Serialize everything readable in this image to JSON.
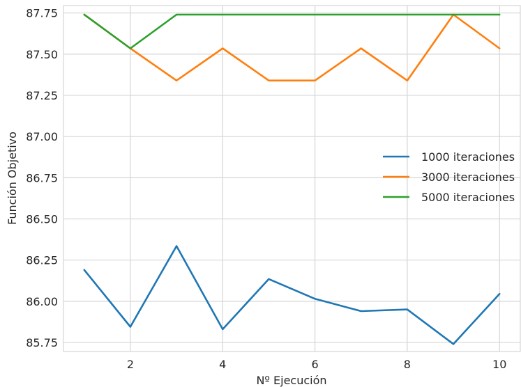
{
  "chart_data": {
    "type": "line",
    "title": "",
    "xlabel": "Nº Ejecución",
    "ylabel": "Función Objetivo",
    "x": [
      1,
      2,
      3,
      4,
      5,
      6,
      7,
      8,
      9,
      10
    ],
    "xlim": [
      0.55,
      10.45
    ],
    "ylim": [
      85.695,
      87.795
    ],
    "xticks": [
      2,
      4,
      6,
      8,
      10
    ],
    "xtick_labels": [
      "2",
      "4",
      "6",
      "8",
      "10"
    ],
    "yticks": [
      85.75,
      86.0,
      86.25,
      86.5,
      86.75,
      87.0,
      87.25,
      87.5,
      87.75
    ],
    "ytick_labels": [
      "85.75",
      "86.00",
      "86.25",
      "86.50",
      "86.75",
      "87.00",
      "87.25",
      "87.50",
      "87.75"
    ],
    "grid": true,
    "legend_position": "center-right",
    "series": [
      {
        "name": "1000 iteraciones",
        "color": "#1f77b4",
        "values": [
          86.19,
          85.845,
          86.335,
          85.83,
          86.135,
          86.015,
          85.94,
          85.95,
          85.74,
          86.045
        ]
      },
      {
        "name": "3000 iteraciones",
        "color": "#ff7f0e",
        "values": [
          87.74,
          87.535,
          87.34,
          87.535,
          87.34,
          87.34,
          87.535,
          87.34,
          87.74,
          87.535
        ]
      },
      {
        "name": "5000 iteraciones",
        "color": "#2ca02c",
        "values": [
          87.74,
          87.535,
          87.74,
          87.74,
          87.74,
          87.74,
          87.74,
          87.74,
          87.74,
          87.74
        ]
      }
    ]
  }
}
